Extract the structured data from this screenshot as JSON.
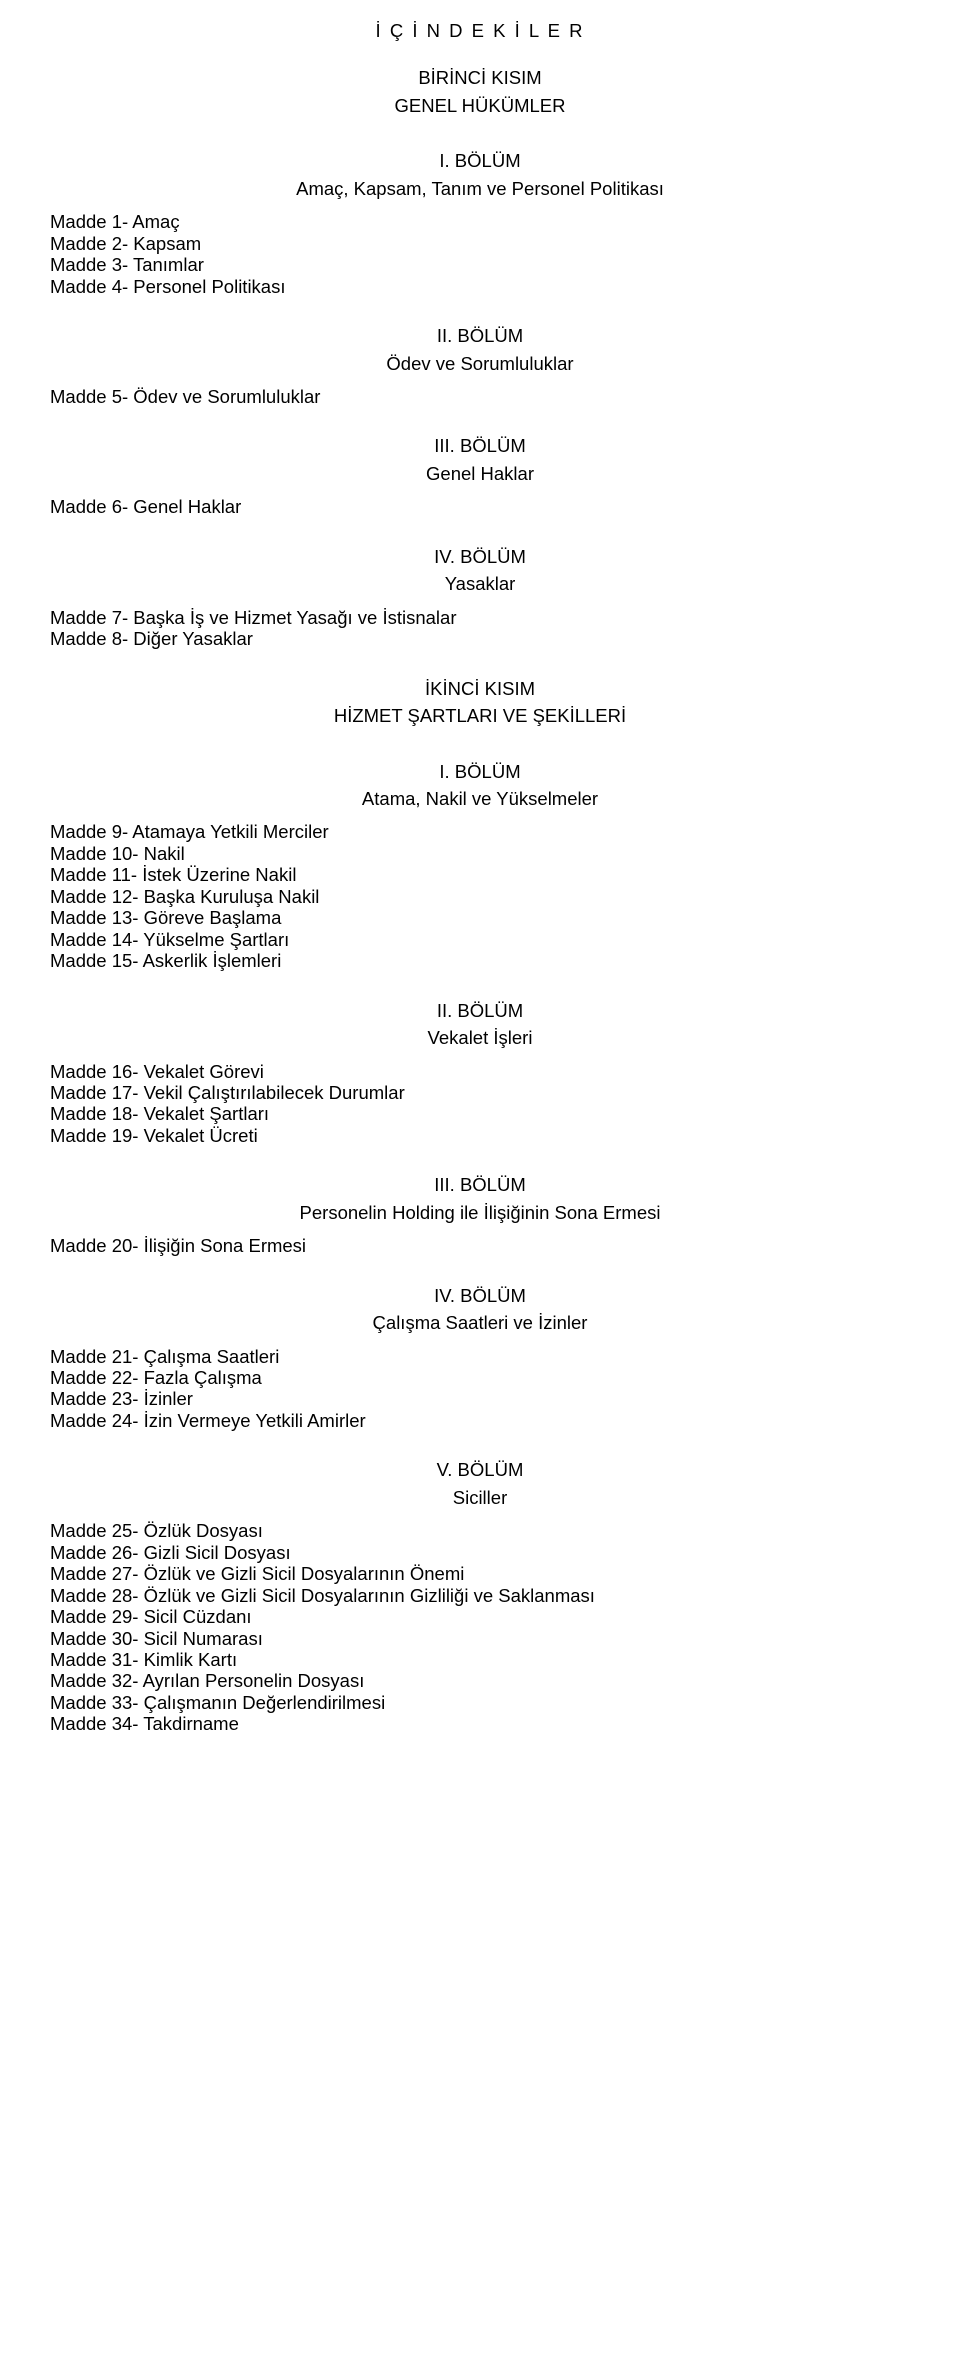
{
  "main_title": "İ Ç İ N D E K İ L E R",
  "part1": {
    "kisim": "BİRİNCİ KISIM",
    "kisim_title": "GENEL HÜKÜMLER"
  },
  "b1": {
    "heading": "I. BÖLÜM",
    "sub": "Amaç, Kapsam, Tanım ve Personel Politikası"
  },
  "g1": {
    "i1": "Madde 1- Amaç",
    "i2": "Madde 2- Kapsam",
    "i3": "Madde 3- Tanımlar",
    "i4": "Madde 4- Personel Politikası"
  },
  "b2": {
    "heading": "II. BÖLÜM",
    "sub": "Ödev ve Sorumluluklar"
  },
  "g2": {
    "i1": "Madde 5- Ödev ve Sorumluluklar"
  },
  "b3": {
    "heading": "III. BÖLÜM",
    "sub": "Genel Haklar"
  },
  "g3": {
    "i1": "Madde 6- Genel Haklar"
  },
  "b4": {
    "heading": "IV. BÖLÜM",
    "sub": "Yasaklar"
  },
  "g4": {
    "i1": "Madde 7- Başka İş ve Hizmet Yasağı ve İstisnalar",
    "i2": "Madde 8- Diğer Yasaklar"
  },
  "part2": {
    "kisim": "İKİNCİ KISIM",
    "kisim_title": "HİZMET ŞARTLARI VE ŞEKİLLERİ"
  },
  "b5": {
    "heading": "I. BÖLÜM",
    "sub": "Atama, Nakil ve Yükselmeler"
  },
  "g5": {
    "i1": "Madde 9- Atamaya Yetkili Merciler",
    "i2": "Madde 10- Nakil",
    "i3": "Madde 11- İstek Üzerine Nakil",
    "i4": "Madde 12- Başka Kuruluşa Nakil",
    "i5": "Madde 13- Göreve Başlama",
    "i6": "Madde 14- Yükselme Şartları",
    "i7": "Madde 15- Askerlik İşlemleri"
  },
  "b6": {
    "heading": "II. BÖLÜM",
    "sub": "Vekalet İşleri"
  },
  "g6": {
    "i1": "Madde 16- Vekalet Görevi",
    "i2": "Madde 17- Vekil Çalıştırılabilecek Durumlar",
    "i3": "Madde 18- Vekalet Şartları",
    "i4": "Madde 19- Vekalet Ücreti"
  },
  "b7": {
    "heading": "III. BÖLÜM",
    "sub": "Personelin Holding ile İlişiğinin Sona Ermesi"
  },
  "g7": {
    "i1": "Madde 20- İlişiğin Sona Ermesi"
  },
  "b8": {
    "heading": "IV. BÖLÜM",
    "sub": "Çalışma Saatleri ve İzinler"
  },
  "g8": {
    "i1": "Madde 21- Çalışma Saatleri",
    "i2": "Madde 22- Fazla Çalışma",
    "i3": "Madde 23- İzinler",
    "i4": "Madde 24- İzin Vermeye Yetkili Amirler"
  },
  "b9": {
    "heading": "V. BÖLÜM",
    "sub": "Siciller"
  },
  "g9": {
    "i1": "Madde 25- Özlük Dosyası",
    "i2": "Madde 26- Gizli Sicil Dosyası",
    "i3": "Madde 27- Özlük ve Gizli Sicil Dosyalarının Önemi",
    "i4": "Madde 28- Özlük ve Gizli Sicil Dosyalarının Gizliliği ve Saklanması",
    "i5": "Madde 29- Sicil Cüzdanı",
    "i6": "Madde 30- Sicil Numarası",
    "i7": "Madde 31- Kimlik Kartı",
    "i8": "Madde 32- Ayrılan Personelin Dosyası",
    "i9": "Madde 33- Çalışmanın Değerlendirilmesi",
    "i10": "Madde 34- Takdirname"
  }
}
